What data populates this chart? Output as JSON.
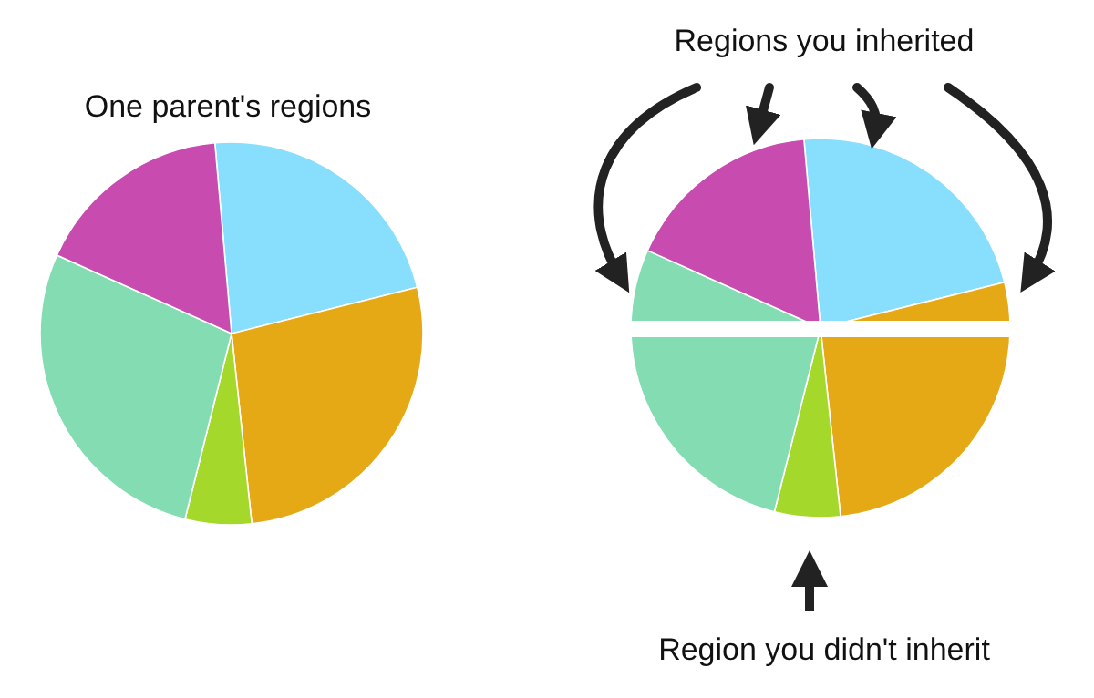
{
  "chart_data": [
    {
      "type": "pie",
      "title": "One parent's regions",
      "categories": [
        null,
        null,
        null,
        null,
        null
      ],
      "values": [
        22.5,
        27.2,
        5.6,
        27.8,
        16.9
      ],
      "colors": [
        "#87dffd",
        "#e6a916",
        "#a4d82a",
        "#84dcb3",
        "#c84bb0"
      ]
    },
    {
      "type": "pie",
      "annotations": [
        "Regions you inherited",
        "Region you didn't inherit"
      ],
      "categories": [
        null,
        null,
        null,
        null,
        null
      ],
      "values": [
        22.5,
        27.2,
        5.6,
        27.8,
        16.9
      ],
      "colors": [
        "#87dffd",
        "#e6a916",
        "#a4d82a",
        "#84dcb3",
        "#c84bb0"
      ]
    }
  ]
}
